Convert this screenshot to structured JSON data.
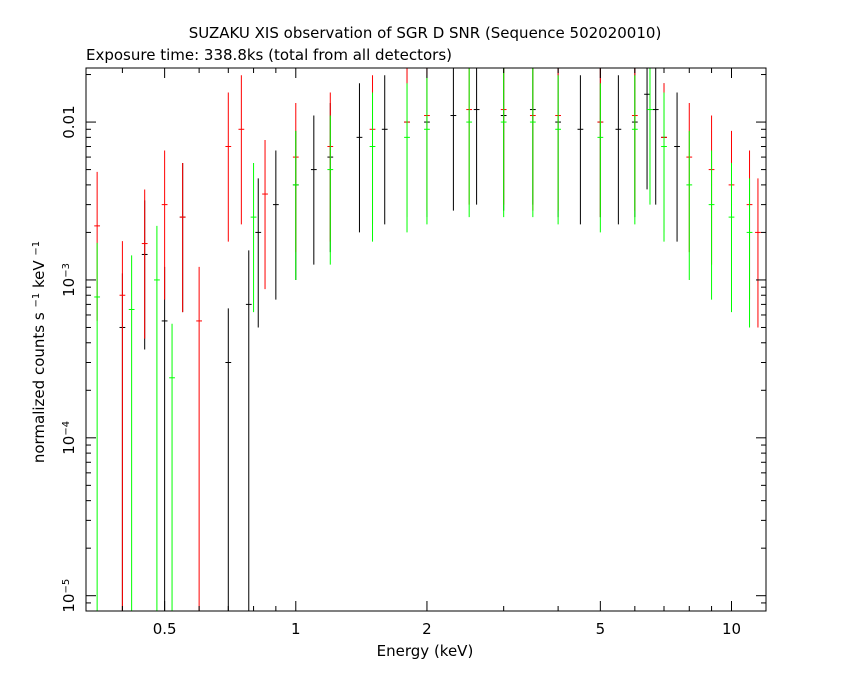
{
  "chart_data": {
    "type": "scatter",
    "title": "SUZAKU XIS observation of SGR D SNR (Sequence 502020010)",
    "subtitle": "Exposure time: 338.8ks (total from all detectors)",
    "xlabel": "Energy (keV)",
    "ylabel": {
      "base": "normalized counts s",
      "exp1": "−1",
      "mid": " keV",
      "exp2": "−1"
    },
    "x_scale": "log",
    "y_scale": "log",
    "xlim": [
      0.33,
      12
    ],
    "ylim": [
      8e-06,
      0.022
    ],
    "grid": false,
    "x_ticks": [
      {
        "value": 0.5,
        "label": "0.5"
      },
      {
        "value": 1,
        "label": "1"
      },
      {
        "value": 2,
        "label": "2"
      },
      {
        "value": 5,
        "label": "5"
      },
      {
        "value": 10,
        "label": "10"
      }
    ],
    "y_ticks": [
      {
        "value": 1e-05,
        "base": "10",
        "exp": "−5"
      },
      {
        "value": 0.0001,
        "base": "10",
        "exp": "−4"
      },
      {
        "value": 0.001,
        "base": "10",
        "exp": "−3"
      },
      {
        "value": 0.01,
        "base": "0.01",
        "exp": ""
      }
    ],
    "series": [
      {
        "color": "#000000",
        "points": [
          [
            0.4,
            0.0005
          ],
          [
            0.45,
            0.00145
          ],
          [
            0.5,
            0.00055
          ],
          [
            0.55,
            0.0025
          ],
          [
            0.7,
            0.0003
          ],
          [
            0.78,
            0.0007
          ],
          [
            0.82,
            0.002
          ],
          [
            0.9,
            0.003
          ],
          [
            1.0,
            0.004
          ],
          [
            1.1,
            0.005
          ],
          [
            1.2,
            0.006
          ],
          [
            1.4,
            0.008
          ],
          [
            1.6,
            0.009
          ],
          [
            1.8,
            0.01
          ],
          [
            2.0,
            0.01
          ],
          [
            2.3,
            0.011
          ],
          [
            2.6,
            0.012
          ],
          [
            3.0,
            0.011
          ],
          [
            3.5,
            0.012
          ],
          [
            4.0,
            0.01
          ],
          [
            4.5,
            0.009
          ],
          [
            5.0,
            0.01
          ],
          [
            5.5,
            0.009
          ],
          [
            6.0,
            0.01
          ],
          [
            6.4,
            0.015
          ],
          [
            6.7,
            0.012
          ],
          [
            7.0,
            0.008
          ],
          [
            7.5,
            0.007
          ]
        ]
      },
      {
        "color": "#ff0000",
        "points": [
          [
            0.35,
            0.0022
          ],
          [
            0.4,
            0.0008
          ],
          [
            0.45,
            0.0017
          ],
          [
            0.5,
            0.003
          ],
          [
            0.55,
            0.0025
          ],
          [
            0.6,
            0.00055
          ],
          [
            0.7,
            0.007
          ],
          [
            0.75,
            0.009
          ],
          [
            0.85,
            0.0035
          ],
          [
            1.0,
            0.006
          ],
          [
            1.2,
            0.007
          ],
          [
            1.5,
            0.009
          ],
          [
            1.8,
            0.01
          ],
          [
            2.0,
            0.011
          ],
          [
            2.5,
            0.012
          ],
          [
            3.0,
            0.012
          ],
          [
            3.5,
            0.011
          ],
          [
            4.0,
            0.011
          ],
          [
            5.0,
            0.01
          ],
          [
            6.0,
            0.011
          ],
          [
            7.0,
            0.008
          ],
          [
            8.0,
            0.006
          ],
          [
            9.0,
            0.005
          ],
          [
            10.0,
            0.004
          ],
          [
            11.0,
            0.003
          ],
          [
            11.5,
            0.002
          ]
        ]
      },
      {
        "color": "#00ff00",
        "points": [
          [
            0.35,
            0.00078
          ],
          [
            0.42,
            0.00065
          ],
          [
            0.48,
            0.001
          ],
          [
            0.52,
            0.00024
          ],
          [
            0.8,
            0.0025
          ],
          [
            1.0,
            0.004
          ],
          [
            1.2,
            0.005
          ],
          [
            1.5,
            0.007
          ],
          [
            1.8,
            0.008
          ],
          [
            2.0,
            0.009
          ],
          [
            2.5,
            0.01
          ],
          [
            3.0,
            0.01
          ],
          [
            3.5,
            0.01
          ],
          [
            4.0,
            0.009
          ],
          [
            5.0,
            0.008
          ],
          [
            6.0,
            0.009
          ],
          [
            6.5,
            0.012
          ],
          [
            7.0,
            0.007
          ],
          [
            8.0,
            0.004
          ],
          [
            9.0,
            0.003
          ],
          [
            10.0,
            0.0025
          ],
          [
            11.0,
            0.002
          ]
        ]
      }
    ]
  }
}
